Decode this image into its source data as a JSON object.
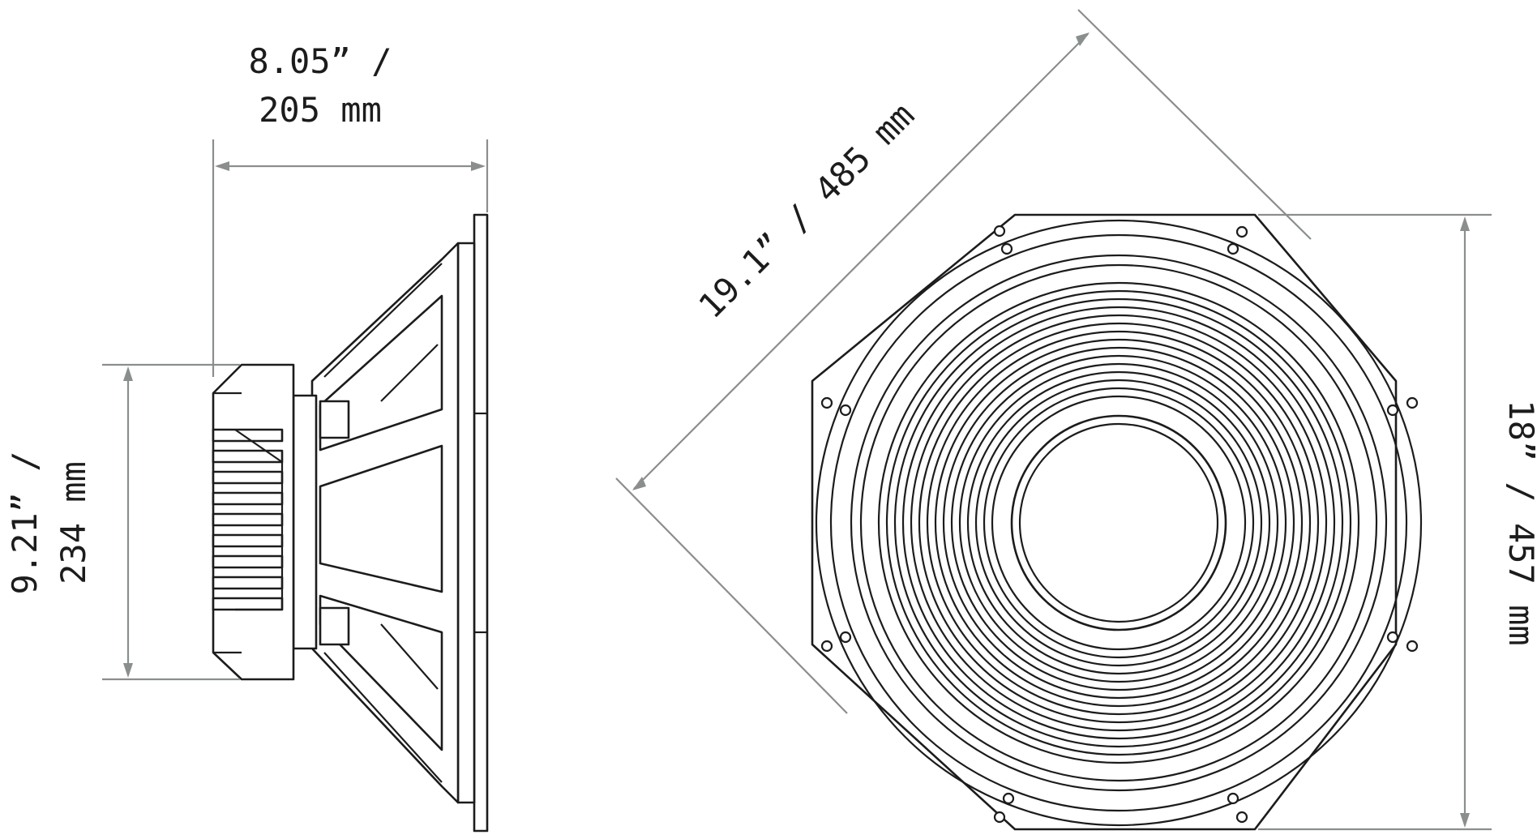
{
  "dimensions": {
    "depth": {
      "line1": "8.05” /",
      "line2": "205 mm"
    },
    "magnet_diameter": {
      "line1": "9.21” /",
      "line2": "234 mm"
    },
    "diagonal": {
      "text": "19.1” / 485 mm"
    },
    "frame_width": {
      "text": "18” / 457 mm"
    }
  },
  "colors": {
    "ink": "#1c1c1c",
    "dimension_line": "#8a8e8c",
    "background": "#ffffff"
  }
}
